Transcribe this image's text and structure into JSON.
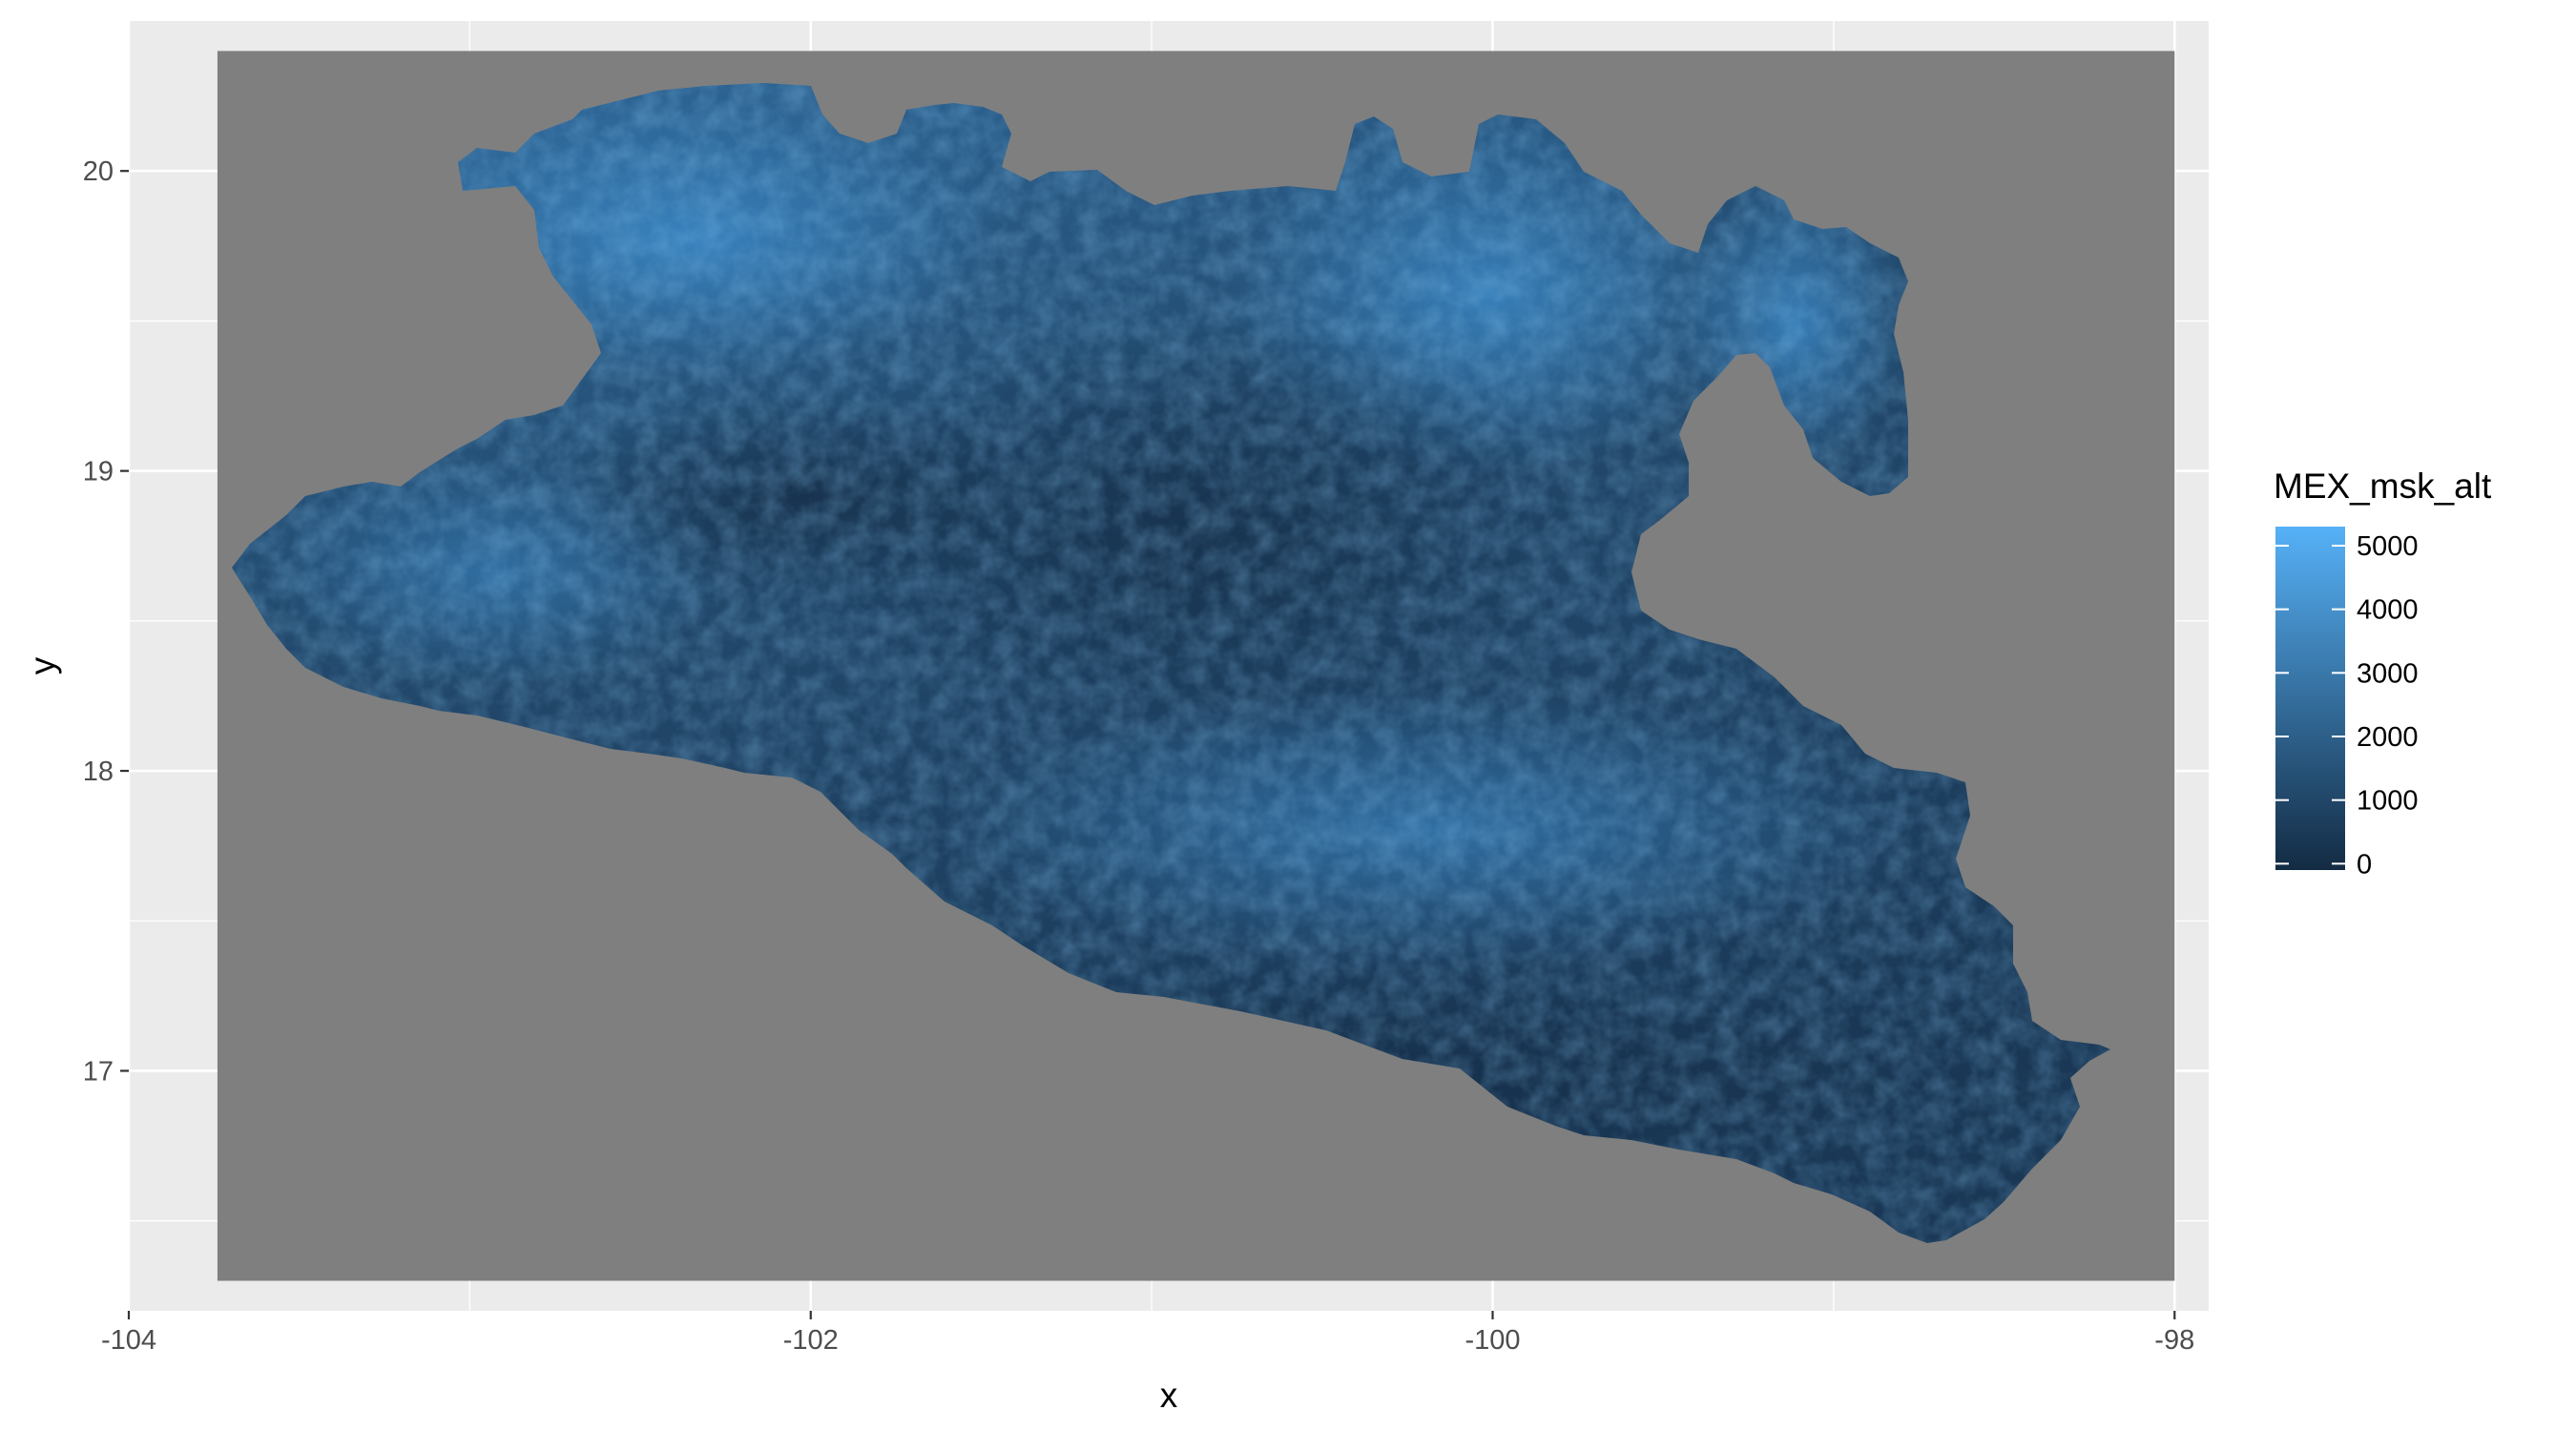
{
  "chart_data": {
    "type": "heatmap",
    "title": "",
    "xlabel": "x",
    "ylabel": "y",
    "xlim": [
      -104,
      -97.9
    ],
    "ylim": [
      16.2,
      20.5
    ],
    "x_ticks": [
      -104,
      -102,
      -100,
      -98
    ],
    "x_tick_labels": [
      "-104",
      "-102",
      "-100",
      "-98"
    ],
    "y_ticks": [
      17,
      18,
      19,
      20
    ],
    "y_tick_labels": [
      "17",
      "18",
      "19",
      "20"
    ],
    "raster_extent": {
      "x": [
        -103.74,
        -98.0
      ],
      "y": [
        16.3,
        20.4
      ]
    },
    "na_color": "#7f7f7f",
    "panel_background": "#ebebeb",
    "grid": true,
    "fill_variable": "MEX_msk_alt",
    "colorbar": {
      "title": "MEX_msk_alt",
      "min": -100,
      "max": 5300,
      "breaks": [
        0,
        1000,
        2000,
        3000,
        4000,
        5000
      ],
      "break_labels": [
        "0",
        "1000",
        "2000",
        "3000",
        "4000",
        "5000"
      ],
      "low_color": "#132b43",
      "high_color": "#56b1f7"
    },
    "legend_position": "right"
  }
}
